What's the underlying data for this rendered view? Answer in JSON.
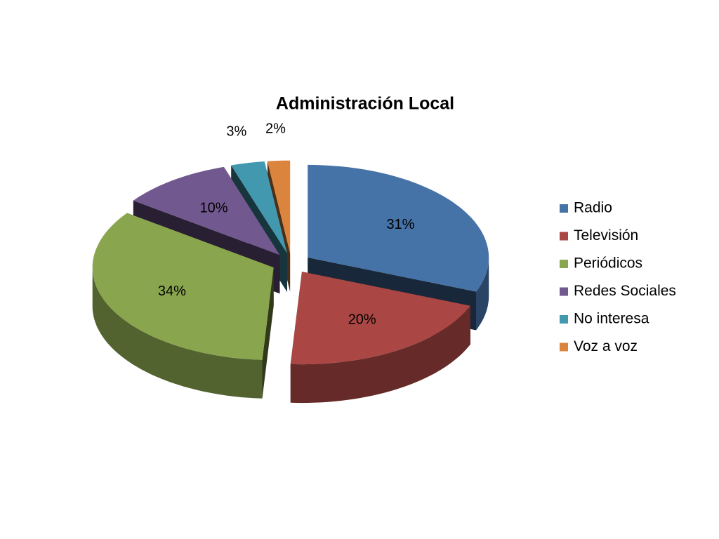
{
  "chart_data": {
    "type": "pie",
    "title": "Administración Local",
    "categories": [
      "Radio",
      "Televisión",
      "Periódicos",
      "Redes Sociales",
      "No interesa",
      "Voz a voz"
    ],
    "values": [
      31,
      20,
      34,
      10,
      3,
      2
    ],
    "value_labels": [
      "31%",
      "20%",
      "34%",
      "10%",
      "3%",
      "2%"
    ],
    "colors": [
      "#4572a7",
      "#aa4643",
      "#89a54e",
      "#71588f",
      "#4198af",
      "#db843d"
    ],
    "legend": "right"
  }
}
